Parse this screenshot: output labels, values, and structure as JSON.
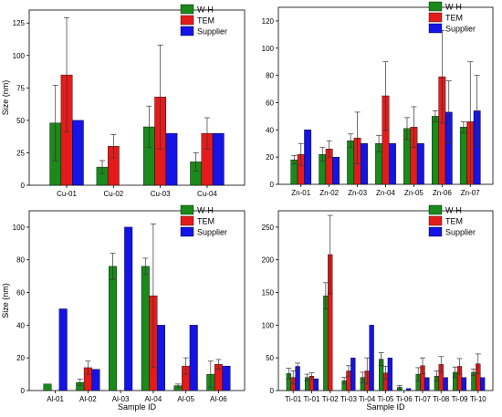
{
  "colors": {
    "W-H": "#1a8a1a",
    "TEM": "#e51b1b",
    "Supplier": "#1414e6"
  },
  "chart_data": [
    {
      "type": "bar",
      "ylabel": "Size (nm)",
      "xlabel": "",
      "ylim": [
        0,
        135
      ],
      "yticks": [
        0,
        25,
        50,
        75,
        100,
        125
      ],
      "legend_position": "top-right",
      "categories": [
        "Cu-01",
        "Cu-02",
        "Cu-03",
        "Cu-04"
      ],
      "series": [
        {
          "name": "W-H",
          "values": [
            48,
            14,
            45,
            18
          ],
          "err": [
            29,
            5,
            16,
            7
          ]
        },
        {
          "name": "TEM",
          "values": [
            85,
            30,
            68,
            40
          ],
          "err": [
            44,
            9,
            40,
            12
          ]
        },
        {
          "name": "Supplier",
          "values": [
            50,
            0,
            40,
            40
          ],
          "err": [
            0,
            0,
            0,
            0
          ]
        }
      ]
    },
    {
      "type": "bar",
      "ylabel": "",
      "xlabel": "",
      "ylim": [
        0,
        130
      ],
      "yticks": [
        0,
        20,
        40,
        60,
        80,
        100,
        120
      ],
      "legend_position": "top-right",
      "categories": [
        "Zn-01",
        "Zn-02",
        "Zn-03",
        "Zn-04",
        "Zn-05",
        "Zn-06",
        "Zn-07"
      ],
      "series": [
        {
          "name": "W-H",
          "values": [
            18,
            22,
            32,
            30,
            41,
            50,
            42
          ],
          "err": [
            3,
            5,
            5,
            6,
            8,
            4,
            4
          ]
        },
        {
          "name": "TEM",
          "values": [
            22,
            26,
            34,
            65,
            42,
            79,
            46
          ],
          "err": [
            8,
            6,
            19,
            25,
            15,
            34,
            44
          ]
        },
        {
          "name": "Supplier",
          "values": [
            40,
            20,
            30,
            30,
            30,
            53,
            54
          ],
          "err": [
            0,
            0,
            0,
            0,
            0,
            23,
            26
          ]
        }
      ]
    },
    {
      "type": "bar",
      "ylabel": "Size (nm)",
      "xlabel": "Sample ID",
      "ylim": [
        0,
        110
      ],
      "yticks": [
        0,
        20,
        40,
        60,
        80,
        100
      ],
      "legend_position": "top-right",
      "categories": [
        "Al-01",
        "Al-02",
        "Al-03",
        "Al-04",
        "Al-05",
        "Al-06"
      ],
      "series": [
        {
          "name": "W-H",
          "values": [
            4,
            5,
            76,
            76,
            3,
            10
          ],
          "err": [
            0,
            2,
            8,
            5,
            1,
            8
          ]
        },
        {
          "name": "TEM",
          "values": [
            0,
            14,
            0,
            58,
            15,
            16
          ],
          "err": [
            0,
            4,
            0,
            44,
            5,
            3
          ]
        },
        {
          "name": "Supplier",
          "values": [
            50,
            13,
            100,
            40,
            40,
            15
          ],
          "err": [
            0,
            0,
            0,
            0,
            0,
            0
          ]
        }
      ]
    },
    {
      "type": "bar",
      "ylabel": "",
      "xlabel": "Sample ID",
      "ylim": [
        0,
        275
      ],
      "yticks": [
        0,
        50,
        100,
        150,
        200,
        250
      ],
      "legend_position": "top-right",
      "categories": [
        "Ti-01",
        "Ti-01",
        "Ti-02",
        "Ti-03",
        "Ti-04",
        "Ti-05",
        "Ti-06",
        "Ti-07",
        "Ti-08",
        "Ti-09",
        "Ti-10"
      ],
      "series": [
        {
          "name": "W-H",
          "values": [
            26,
            20,
            145,
            15,
            20,
            48,
            5,
            25,
            22,
            28,
            28
          ],
          "err": [
            8,
            5,
            20,
            5,
            8,
            10,
            3,
            10,
            8,
            8,
            5
          ]
        },
        {
          "name": "TEM",
          "values": [
            20,
            22,
            208,
            30,
            30,
            27,
            0,
            38,
            40,
            37,
            41
          ],
          "err": [
            10,
            5,
            60,
            8,
            20,
            10,
            0,
            12,
            12,
            12,
            15
          ]
        },
        {
          "name": "Supplier",
          "values": [
            37,
            18,
            0,
            50,
            100,
            50,
            3,
            20,
            20,
            20,
            20
          ],
          "err": [
            5,
            0,
            0,
            0,
            0,
            0,
            0,
            0,
            0,
            0,
            0
          ]
        }
      ]
    }
  ]
}
